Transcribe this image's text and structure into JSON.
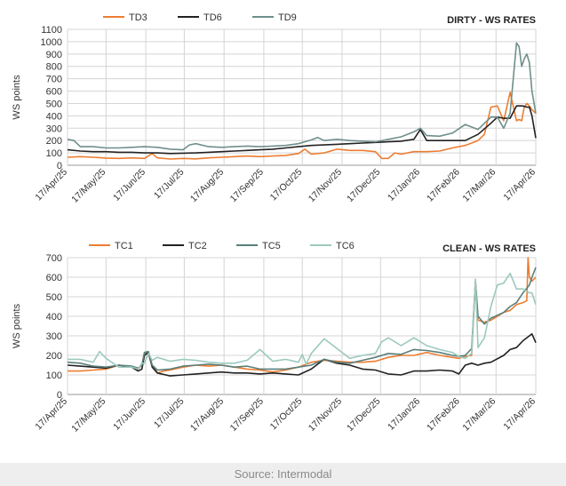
{
  "chart_data": [
    {
      "type": "line",
      "title": "DIRTY - WS RATES",
      "ylabel": "WS points",
      "ylim": [
        0,
        1100
      ],
      "yticks": [
        0,
        100,
        200,
        300,
        400,
        500,
        600,
        700,
        800,
        900,
        1000,
        1100
      ],
      "xlim": [
        0,
        365
      ],
      "xticks": [
        0,
        30,
        61,
        91,
        122,
        153,
        183,
        214,
        244,
        275,
        306,
        334,
        365
      ],
      "xtick_labels": [
        "17/Apr/25",
        "17/May/25",
        "17/Jun/25",
        "17/Jul/25",
        "17/Aug/25",
        "17/Sep/25",
        "17/Oct/25",
        "17/Nov/25",
        "17/Dec/25",
        "17/Jan/26",
        "17/Feb/26",
        "17/Mar/26",
        "17/Apr/26"
      ],
      "legend_position": "top-left",
      "grid": true,
      "series": [
        {
          "name": "TD3",
          "color": "#ed7d31",
          "x": [
            0,
            10,
            20,
            30,
            40,
            50,
            60,
            66,
            70,
            80,
            90,
            100,
            110,
            120,
            130,
            140,
            150,
            160,
            170,
            180,
            185,
            190,
            200,
            210,
            220,
            230,
            240,
            245,
            250,
            255,
            260,
            270,
            280,
            290,
            300,
            310,
            320,
            325,
            330,
            335,
            340,
            345,
            350,
            352,
            354,
            356,
            358,
            360,
            362,
            365
          ],
          "y": [
            65,
            70,
            65,
            58,
            55,
            60,
            55,
            95,
            60,
            50,
            55,
            52,
            60,
            65,
            70,
            75,
            70,
            75,
            80,
            95,
            130,
            90,
            100,
            130,
            120,
            120,
            110,
            55,
            55,
            100,
            90,
            110,
            110,
            115,
            140,
            160,
            200,
            250,
            470,
            480,
            360,
            590,
            360,
            370,
            360,
            470,
            500,
            480,
            450,
            420
          ]
        },
        {
          "name": "TD6",
          "color": "#222222",
          "x": [
            0,
            10,
            20,
            30,
            40,
            50,
            60,
            70,
            80,
            90,
            100,
            110,
            120,
            130,
            140,
            150,
            160,
            170,
            180,
            190,
            200,
            210,
            220,
            230,
            240,
            250,
            260,
            270,
            275,
            280,
            290,
            300,
            310,
            320,
            330,
            335,
            340,
            345,
            350,
            355,
            358,
            360,
            362,
            365
          ],
          "y": [
            125,
            115,
            110,
            110,
            105,
            105,
            100,
            100,
            95,
            98,
            100,
            105,
            110,
            115,
            120,
            125,
            130,
            140,
            150,
            160,
            165,
            170,
            175,
            180,
            185,
            190,
            195,
            210,
            290,
            200,
            200,
            200,
            200,
            250,
            340,
            390,
            380,
            380,
            480,
            480,
            470,
            470,
            400,
            220
          ]
        },
        {
          "name": "TD9",
          "color": "#6f8f8c",
          "x": [
            0,
            5,
            10,
            20,
            30,
            40,
            50,
            60,
            70,
            80,
            90,
            95,
            100,
            110,
            120,
            130,
            140,
            150,
            160,
            170,
            180,
            190,
            195,
            200,
            210,
            220,
            230,
            240,
            250,
            260,
            270,
            275,
            280,
            290,
            300,
            310,
            320,
            330,
            335,
            340,
            345,
            350,
            352,
            354,
            356,
            358,
            360,
            362,
            365
          ],
          "y": [
            210,
            200,
            150,
            150,
            140,
            140,
            145,
            150,
            145,
            130,
            125,
            165,
            175,
            150,
            145,
            150,
            155,
            150,
            155,
            160,
            175,
            205,
            225,
            200,
            210,
            200,
            195,
            190,
            210,
            230,
            270,
            300,
            240,
            235,
            260,
            330,
            290,
            390,
            390,
            300,
            420,
            990,
            960,
            800,
            860,
            900,
            830,
            600,
            420
          ]
        }
      ]
    },
    {
      "type": "line",
      "title": "CLEAN - WS RATES",
      "ylabel": "WS points",
      "ylim": [
        0,
        700
      ],
      "yticks": [
        0,
        100,
        200,
        300,
        400,
        500,
        600,
        700
      ],
      "xlim": [
        0,
        365
      ],
      "xticks": [
        0,
        30,
        61,
        91,
        122,
        153,
        183,
        214,
        244,
        275,
        306,
        334,
        365
      ],
      "xtick_labels": [
        "17/Apr/25",
        "17/May/25",
        "17/Jun/25",
        "17/Jul/25",
        "17/Aug/25",
        "17/Sep/25",
        "17/Oct/25",
        "17/Nov/25",
        "17/Dec/25",
        "17/Jan/26",
        "17/Feb/26",
        "17/Mar/26",
        "17/Apr/26"
      ],
      "legend_position": "top-left",
      "grid": true,
      "series": [
        {
          "name": "TC1",
          "color": "#ed7d31",
          "x": [
            0,
            10,
            20,
            30,
            40,
            50,
            55,
            58,
            60,
            63,
            66,
            70,
            75,
            80,
            90,
            100,
            110,
            120,
            130,
            140,
            150,
            160,
            170,
            180,
            190,
            200,
            210,
            220,
            230,
            240,
            250,
            260,
            270,
            280,
            290,
            300,
            305,
            310,
            315,
            318,
            320,
            325,
            330,
            340,
            345,
            350,
            355,
            358,
            359,
            360,
            362,
            365
          ],
          "y": [
            120,
            120,
            125,
            130,
            150,
            140,
            130,
            150,
            215,
            210,
            150,
            110,
            120,
            125,
            140,
            150,
            145,
            150,
            140,
            130,
            125,
            115,
            125,
            140,
            165,
            175,
            170,
            165,
            165,
            170,
            190,
            200,
            200,
            215,
            200,
            190,
            185,
            195,
            200,
            580,
            380,
            370,
            380,
            420,
            430,
            460,
            470,
            480,
            700,
            600,
            580,
            600
          ]
        },
        {
          "name": "TC2",
          "color": "#222222",
          "x": [
            0,
            10,
            20,
            30,
            40,
            50,
            55,
            58,
            60,
            63,
            66,
            70,
            80,
            90,
            100,
            110,
            120,
            130,
            140,
            150,
            160,
            170,
            180,
            190,
            200,
            210,
            220,
            230,
            240,
            250,
            260,
            270,
            280,
            290,
            300,
            305,
            310,
            315,
            320,
            325,
            330,
            340,
            345,
            350,
            355,
            360,
            362,
            365
          ],
          "y": [
            150,
            145,
            140,
            135,
            150,
            140,
            120,
            130,
            200,
            215,
            140,
            110,
            95,
            100,
            105,
            110,
            115,
            110,
            110,
            105,
            110,
            105,
            100,
            130,
            180,
            160,
            150,
            130,
            125,
            105,
            100,
            120,
            120,
            125,
            120,
            105,
            150,
            160,
            150,
            160,
            165,
            200,
            230,
            240,
            275,
            300,
            310,
            265
          ]
        },
        {
          "name": "TC5",
          "color": "#5a7f7b",
          "x": [
            0,
            10,
            20,
            30,
            40,
            50,
            55,
            58,
            60,
            63,
            66,
            70,
            80,
            90,
            100,
            110,
            120,
            130,
            140,
            150,
            160,
            170,
            180,
            190,
            200,
            210,
            220,
            230,
            240,
            250,
            260,
            270,
            280,
            290,
            300,
            305,
            310,
            315,
            318,
            320,
            325,
            330,
            340,
            345,
            350,
            355,
            360,
            362,
            365
          ],
          "y": [
            165,
            160,
            145,
            140,
            150,
            145,
            135,
            150,
            215,
            220,
            150,
            125,
            130,
            145,
            150,
            155,
            150,
            140,
            145,
            130,
            130,
            130,
            140,
            150,
            180,
            165,
            160,
            175,
            190,
            210,
            205,
            230,
            225,
            215,
            200,
            195,
            200,
            235,
            580,
            400,
            360,
            390,
            420,
            450,
            470,
            520,
            560,
            600,
            650
          ]
        },
        {
          "name": "TC6",
          "color": "#9cc9be",
          "x": [
            0,
            10,
            20,
            25,
            30,
            40,
            50,
            55,
            58,
            60,
            63,
            66,
            70,
            80,
            90,
            100,
            110,
            120,
            130,
            140,
            150,
            160,
            170,
            180,
            183,
            186,
            190,
            200,
            210,
            220,
            230,
            240,
            245,
            250,
            260,
            270,
            280,
            290,
            300,
            305,
            310,
            315,
            318,
            320,
            325,
            330,
            335,
            340,
            345,
            350,
            355,
            360,
            362,
            365
          ],
          "y": [
            180,
            180,
            165,
            220,
            185,
            140,
            140,
            130,
            160,
            160,
            210,
            175,
            190,
            170,
            180,
            175,
            165,
            160,
            160,
            175,
            230,
            170,
            180,
            165,
            205,
            155,
            210,
            285,
            235,
            185,
            200,
            210,
            270,
            290,
            250,
            290,
            250,
            230,
            215,
            195,
            185,
            210,
            590,
            240,
            290,
            450,
            560,
            570,
            620,
            540,
            540,
            520,
            520,
            460
          ]
        }
      ]
    }
  ],
  "source_text": "Source: Intermodal"
}
